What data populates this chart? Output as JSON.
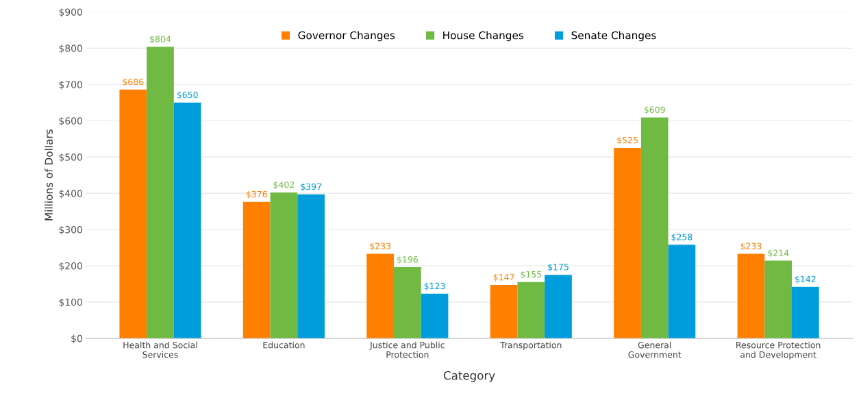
{
  "chart_data": {
    "type": "bar",
    "xlabel": "Category",
    "ylabel": "Millions of Dollars",
    "categories": [
      "Health and Social\nServices",
      "Education",
      "Justice and Public\nProtection",
      "Transportation",
      "General\nGovernment",
      "Resource Protection\nand Development"
    ],
    "series": [
      {
        "name": "Governor Changes",
        "color": "#ff8000",
        "values": [
          686,
          376,
          233,
          147,
          525,
          233
        ],
        "value_labels": [
          "$686",
          "$376",
          "$233",
          "$147",
          "$525",
          "$233"
        ]
      },
      {
        "name": "House Changes",
        "color": "#70b943",
        "values": [
          804,
          402,
          196,
          155,
          609,
          214
        ],
        "value_labels": [
          "$804",
          "$402",
          "$196",
          "$155",
          "$609",
          "$214"
        ]
      },
      {
        "name": "Senate Changes",
        "color": "#009ddc",
        "values": [
          650,
          397,
          123,
          175,
          258,
          142
        ],
        "value_labels": [
          "$650",
          "$397",
          "$123",
          "$175",
          "$258",
          "$142"
        ]
      }
    ],
    "ylim": [
      0,
      900
    ],
    "yticks": [
      {
        "value": 0,
        "label": "$0"
      },
      {
        "value": 100,
        "label": "$100"
      },
      {
        "value": 200,
        "label": "$200"
      },
      {
        "value": 300,
        "label": "$300"
      },
      {
        "value": 400,
        "label": "$400"
      },
      {
        "value": 500,
        "label": "$500"
      },
      {
        "value": 600,
        "label": "$600"
      },
      {
        "value": 700,
        "label": "$700"
      },
      {
        "value": 800,
        "label": "$800"
      },
      {
        "value": 900,
        "label": "$900"
      }
    ],
    "grid": "y",
    "legend": "top"
  }
}
